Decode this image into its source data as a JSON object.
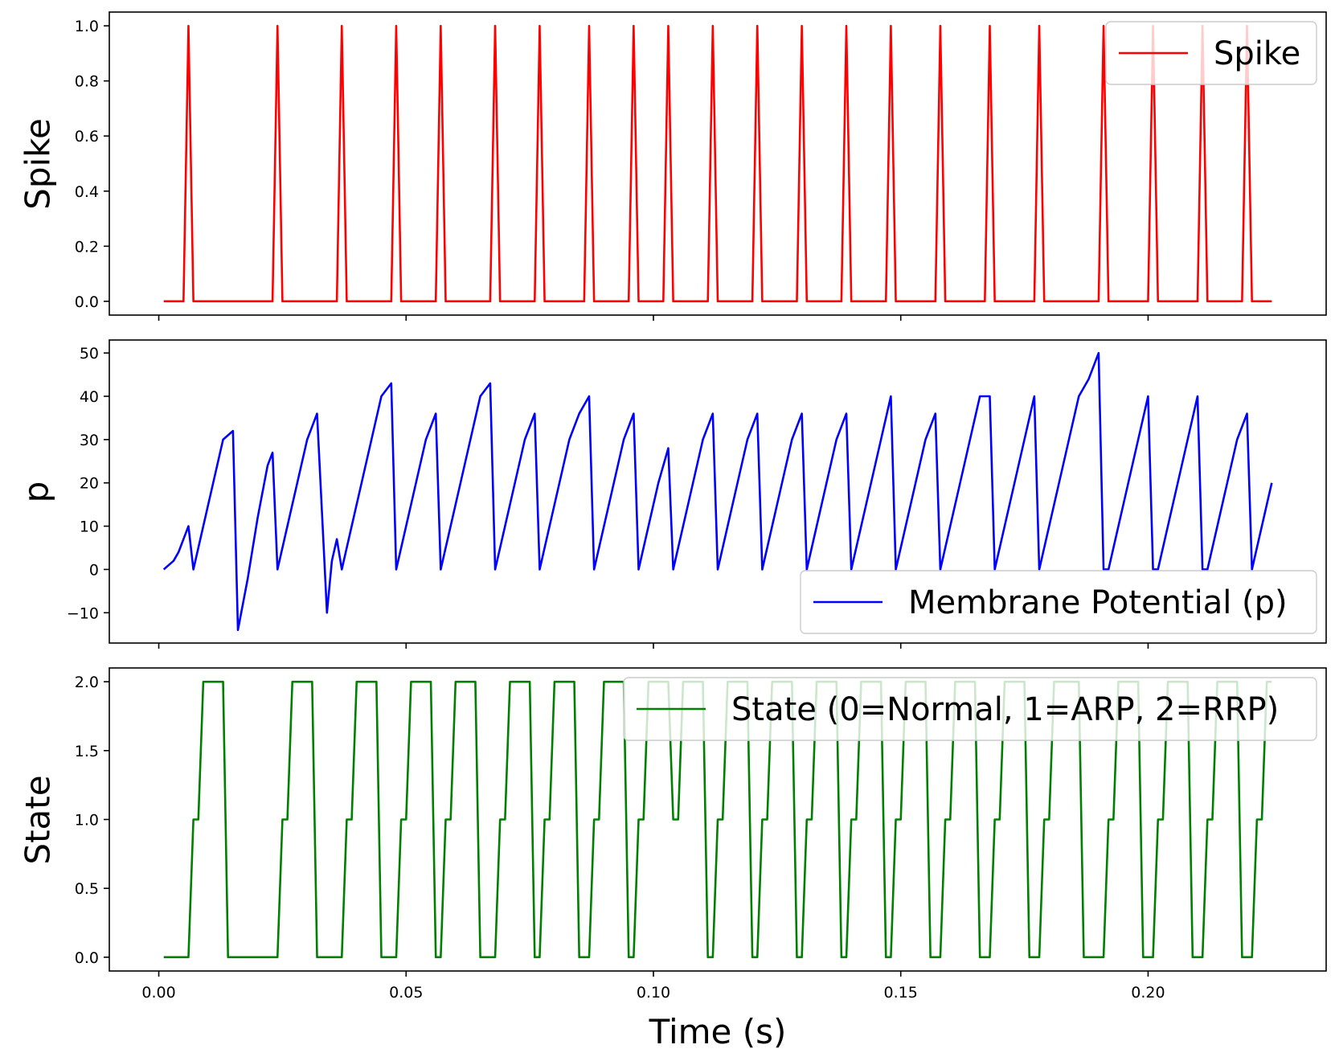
{
  "chart_data": [
    {
      "type": "line",
      "title": "",
      "xlabel": "",
      "ylabel": "Spike",
      "xlim": [
        -0.01,
        0.236
      ],
      "ylim": [
        -0.05,
        1.05
      ],
      "xticks": [
        0.0,
        0.05,
        0.1,
        0.15,
        0.2
      ],
      "xtick_labels_visible": false,
      "yticks": [
        0.0,
        0.2,
        0.4,
        0.6,
        0.8,
        1.0
      ],
      "ytick_labels": [
        "0.0",
        "0.2",
        "0.4",
        "0.6",
        "0.8",
        "1.0"
      ],
      "legend": {
        "placement": "top-right"
      },
      "series": [
        {
          "name": "Spike",
          "color": "#ff0000",
          "x": [
            0.001,
            0.005,
            0.006,
            0.007,
            0.023,
            0.024,
            0.025,
            0.036,
            0.037,
            0.038,
            0.047,
            0.048,
            0.049,
            0.056,
            0.057,
            0.058,
            0.067,
            0.068,
            0.069,
            0.076,
            0.077,
            0.078,
            0.086,
            0.087,
            0.088,
            0.095,
            0.096,
            0.097,
            0.102,
            0.103,
            0.104,
            0.111,
            0.112,
            0.113,
            0.12,
            0.121,
            0.122,
            0.129,
            0.13,
            0.131,
            0.138,
            0.139,
            0.14,
            0.147,
            0.148,
            0.149,
            0.157,
            0.158,
            0.159,
            0.167,
            0.168,
            0.169,
            0.177,
            0.178,
            0.179,
            0.19,
            0.191,
            0.192,
            0.2,
            0.201,
            0.202,
            0.21,
            0.211,
            0.212,
            0.219,
            0.22,
            0.221,
            0.225
          ],
          "y": [
            0,
            0,
            1,
            0,
            0,
            1,
            0,
            0,
            1,
            0,
            0,
            1,
            0,
            0,
            1,
            0,
            0,
            1,
            0,
            0,
            1,
            0,
            0,
            1,
            0,
            0,
            1,
            0,
            0,
            1,
            0,
            0,
            1,
            0,
            0,
            1,
            0,
            0,
            1,
            0,
            0,
            1,
            0,
            0,
            1,
            0,
            0,
            1,
            0,
            0,
            1,
            0,
            0,
            1,
            0,
            0,
            1,
            0,
            0,
            1,
            0,
            0,
            1,
            0,
            0,
            1,
            0,
            0
          ]
        }
      ]
    },
    {
      "type": "line",
      "title": "",
      "xlabel": "",
      "ylabel": "p",
      "xlim": [
        -0.01,
        0.236
      ],
      "ylim": [
        -17,
        53
      ],
      "xticks": [
        0.0,
        0.05,
        0.1,
        0.15,
        0.2
      ],
      "xtick_labels_visible": false,
      "yticks": [
        -10,
        0,
        10,
        20,
        30,
        40,
        50
      ],
      "ytick_labels": [
        "−10",
        "0",
        "10",
        "20",
        "30",
        "40",
        "50"
      ],
      "legend": {
        "placement": "lower-right"
      },
      "series": [
        {
          "name": "Membrane Potential (p)",
          "color": "#0000ff",
          "x": [
            0.001,
            0.003,
            0.004,
            0.006,
            0.007,
            0.009,
            0.011,
            0.013,
            0.015,
            0.016,
            0.018,
            0.02,
            0.022,
            0.023,
            0.024,
            0.026,
            0.028,
            0.03,
            0.032,
            0.034,
            0.035,
            0.036,
            0.037,
            0.039,
            0.041,
            0.043,
            0.045,
            0.047,
            0.048,
            0.05,
            0.052,
            0.054,
            0.056,
            0.057,
            0.059,
            0.061,
            0.063,
            0.065,
            0.067,
            0.068,
            0.07,
            0.072,
            0.074,
            0.076,
            0.077,
            0.079,
            0.081,
            0.083,
            0.085,
            0.087,
            0.088,
            0.09,
            0.092,
            0.094,
            0.096,
            0.097,
            0.099,
            0.101,
            0.103,
            0.104,
            0.106,
            0.108,
            0.11,
            0.112,
            0.113,
            0.115,
            0.117,
            0.119,
            0.121,
            0.122,
            0.124,
            0.126,
            0.128,
            0.13,
            0.131,
            0.133,
            0.135,
            0.137,
            0.139,
            0.14,
            0.142,
            0.144,
            0.146,
            0.148,
            0.149,
            0.151,
            0.153,
            0.155,
            0.157,
            0.158,
            0.16,
            0.162,
            0.164,
            0.166,
            0.168,
            0.169,
            0.171,
            0.173,
            0.175,
            0.177,
            0.178,
            0.18,
            0.182,
            0.184,
            0.186,
            0.188,
            0.19,
            0.191,
            0.192,
            0.194,
            0.196,
            0.198,
            0.2,
            0.201,
            0.202,
            0.204,
            0.206,
            0.208,
            0.21,
            0.211,
            0.212,
            0.214,
            0.216,
            0.218,
            0.22,
            0.221,
            0.223,
            0.225
          ],
          "y": [
            0,
            2,
            4,
            10,
            0,
            10,
            20,
            30,
            32,
            -14,
            -2,
            12,
            24,
            27,
            0,
            10,
            20,
            30,
            36,
            -10,
            2,
            7,
            0,
            10,
            20,
            30,
            40,
            43,
            0,
            10,
            20,
            30,
            36,
            0,
            10,
            20,
            30,
            40,
            43,
            0,
            10,
            20,
            30,
            36,
            0,
            10,
            20,
            30,
            36,
            40,
            0,
            10,
            20,
            30,
            36,
            0,
            10,
            20,
            28,
            0,
            10,
            20,
            30,
            36,
            0,
            10,
            20,
            30,
            36,
            0,
            10,
            20,
            30,
            36,
            0,
            10,
            20,
            30,
            36,
            0,
            10,
            20,
            30,
            40,
            0,
            10,
            20,
            30,
            36,
            0,
            10,
            20,
            30,
            40,
            40,
            0,
            10,
            20,
            30,
            40,
            0,
            10,
            20,
            30,
            40,
            44,
            50,
            0,
            0,
            10,
            20,
            30,
            40,
            0,
            0,
            10,
            20,
            30,
            40,
            0,
            0,
            10,
            20,
            30,
            36,
            0,
            10,
            20
          ]
        }
      ]
    },
    {
      "type": "line",
      "title": "",
      "xlabel": "Time (s)",
      "ylabel": "State",
      "xlim": [
        -0.01,
        0.236
      ],
      "ylim": [
        -0.1,
        2.1
      ],
      "xticks": [
        0.0,
        0.05,
        0.1,
        0.15,
        0.2
      ],
      "xtick_labels": [
        "0.00",
        "0.05",
        "0.10",
        "0.15",
        "0.20"
      ],
      "yticks": [
        0.0,
        0.5,
        1.0,
        1.5,
        2.0
      ],
      "ytick_labels": [
        "0.0",
        "0.5",
        "1.0",
        "1.5",
        "2.0"
      ],
      "legend": {
        "placement": "top-right"
      },
      "series": [
        {
          "name": "State (0=Normal, 1=ARP, 2=RRP)",
          "color": "#008000",
          "x": [
            0.001,
            0.006,
            0.007,
            0.008,
            0.009,
            0.013,
            0.014,
            0.024,
            0.025,
            0.026,
            0.027,
            0.031,
            0.032,
            0.037,
            0.038,
            0.039,
            0.04,
            0.044,
            0.045,
            0.048,
            0.049,
            0.05,
            0.051,
            0.055,
            0.056,
            0.057,
            0.058,
            0.059,
            0.06,
            0.064,
            0.065,
            0.068,
            0.069,
            0.07,
            0.071,
            0.075,
            0.076,
            0.077,
            0.078,
            0.079,
            0.08,
            0.084,
            0.085,
            0.087,
            0.088,
            0.089,
            0.09,
            0.094,
            0.095,
            0.096,
            0.097,
            0.098,
            0.099,
            0.103,
            0.104,
            0.105,
            0.106,
            0.11,
            0.111,
            0.112,
            0.113,
            0.114,
            0.115,
            0.119,
            0.12,
            0.121,
            0.122,
            0.123,
            0.124,
            0.128,
            0.129,
            0.13,
            0.131,
            0.132,
            0.133,
            0.137,
            0.138,
            0.139,
            0.14,
            0.141,
            0.142,
            0.146,
            0.147,
            0.148,
            0.149,
            0.15,
            0.151,
            0.155,
            0.156,
            0.158,
            0.159,
            0.16,
            0.161,
            0.165,
            0.166,
            0.168,
            0.169,
            0.17,
            0.171,
            0.175,
            0.176,
            0.178,
            0.179,
            0.18,
            0.181,
            0.186,
            0.187,
            0.191,
            0.192,
            0.193,
            0.194,
            0.198,
            0.199,
            0.201,
            0.202,
            0.203,
            0.204,
            0.208,
            0.209,
            0.211,
            0.212,
            0.213,
            0.214,
            0.218,
            0.219,
            0.221,
            0.222,
            0.223,
            0.224,
            0.225
          ],
          "y": [
            0,
            0,
            1,
            1,
            2,
            2,
            0,
            0,
            1,
            1,
            2,
            2,
            0,
            0,
            1,
            1,
            2,
            2,
            0,
            0,
            1,
            1,
            2,
            2,
            0,
            0,
            1,
            1,
            2,
            2,
            0,
            0,
            1,
            1,
            2,
            2,
            0,
            0,
            1,
            1,
            2,
            2,
            0,
            0,
            1,
            1,
            2,
            2,
            0,
            0,
            1,
            1,
            2,
            2,
            1,
            1,
            2,
            2,
            0,
            0,
            1,
            1,
            2,
            2,
            0,
            0,
            1,
            1,
            2,
            2,
            0,
            0,
            1,
            1,
            2,
            2,
            0,
            0,
            1,
            1,
            2,
            2,
            0,
            0,
            1,
            1,
            2,
            2,
            0,
            0,
            1,
            1,
            2,
            2,
            0,
            0,
            1,
            1,
            2,
            2,
            0,
            0,
            1,
            1,
            2,
            2,
            0,
            0,
            1,
            1,
            2,
            2,
            0,
            0,
            1,
            1,
            2,
            2,
            0,
            0,
            1,
            1,
            2,
            2,
            0,
            0,
            1,
            1,
            2,
            2
          ]
        }
      ]
    }
  ]
}
